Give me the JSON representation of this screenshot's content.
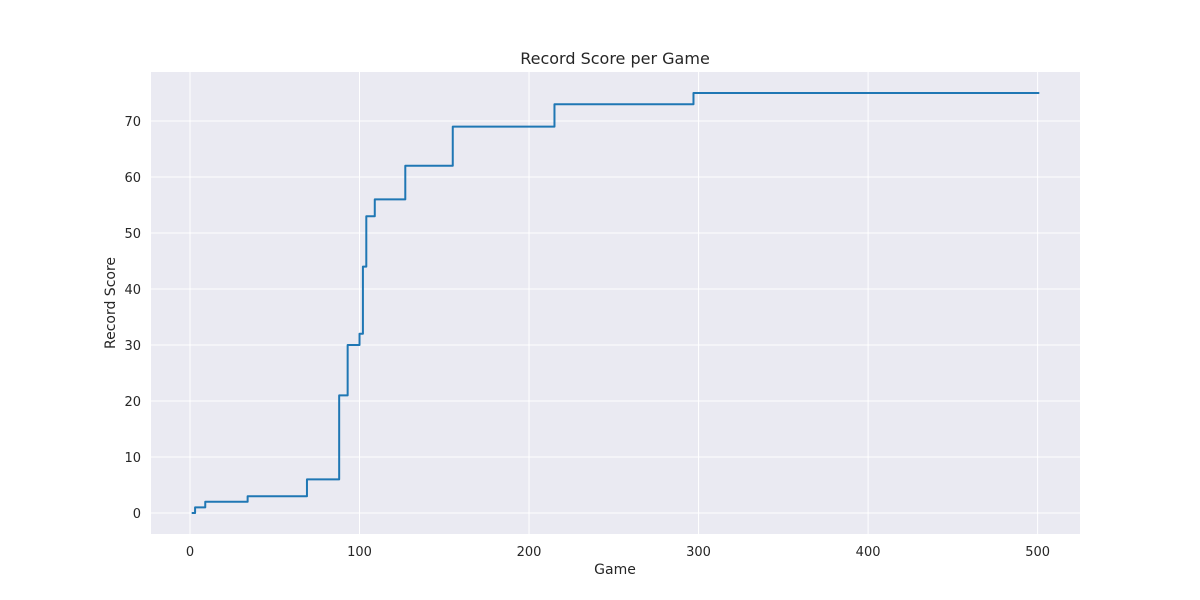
{
  "chart_data": {
    "type": "line",
    "title": "Record Score per Game",
    "xlabel": "Game",
    "ylabel": "Record Score",
    "xlim": [
      -23,
      525
    ],
    "ylim": [
      -3.75,
      78.75
    ],
    "xticks": [
      0,
      100,
      200,
      300,
      400,
      500
    ],
    "yticks": [
      0,
      10,
      20,
      30,
      40,
      50,
      60,
      70
    ],
    "grid": true,
    "colors": {
      "background": "#eaeaf2",
      "grid": "#ffffff",
      "line": "#1f77b4"
    },
    "series": [
      {
        "step": "post",
        "x": [
          1,
          3,
          9,
          34,
          69,
          88,
          93,
          97,
          100,
          102,
          103,
          104,
          107,
          109,
          127,
          155,
          215,
          297,
          501
        ],
        "y": [
          0,
          1,
          2,
          3,
          6,
          21,
          30,
          30,
          32,
          44,
          44,
          53,
          53,
          56,
          62,
          69,
          73,
          75,
          75
        ]
      }
    ]
  }
}
